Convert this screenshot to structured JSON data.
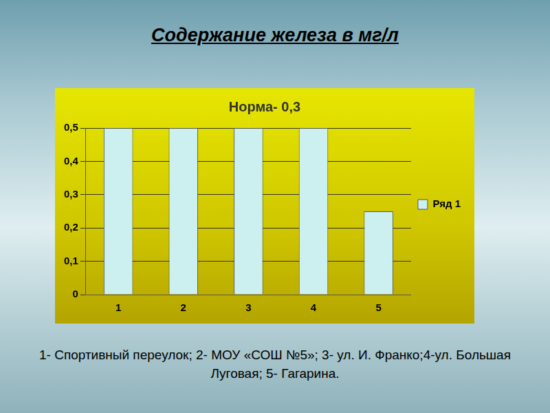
{
  "heading": "Содержание железа в мг/л",
  "chart_data": {
    "type": "bar",
    "title": "Норма- 0,3",
    "categories": [
      "1",
      "2",
      "3",
      "4",
      "5"
    ],
    "series": [
      {
        "name": "Ряд 1",
        "color": "#ccf0f0",
        "values": [
          0.5,
          0.5,
          0.5,
          0.5,
          0.25
        ]
      }
    ],
    "ylim": [
      0,
      0.5
    ],
    "yticks": [
      0,
      {
        "value": 0.1,
        "label": "0,1"
      },
      {
        "value": 0.2,
        "label": "0,2"
      },
      {
        "value": 0.3,
        "label": "0,3"
      },
      {
        "value": 0.4,
        "label": "0,4"
      },
      {
        "value": 0.5,
        "label": "0,5"
      }
    ],
    "grid": true,
    "legend": "right"
  },
  "caption": "1- Спортивный переулок; 2- МОУ «СОШ №5»; 3- ул. И. Франко;4-ул. Большая Луговая; 5- Гагарина."
}
